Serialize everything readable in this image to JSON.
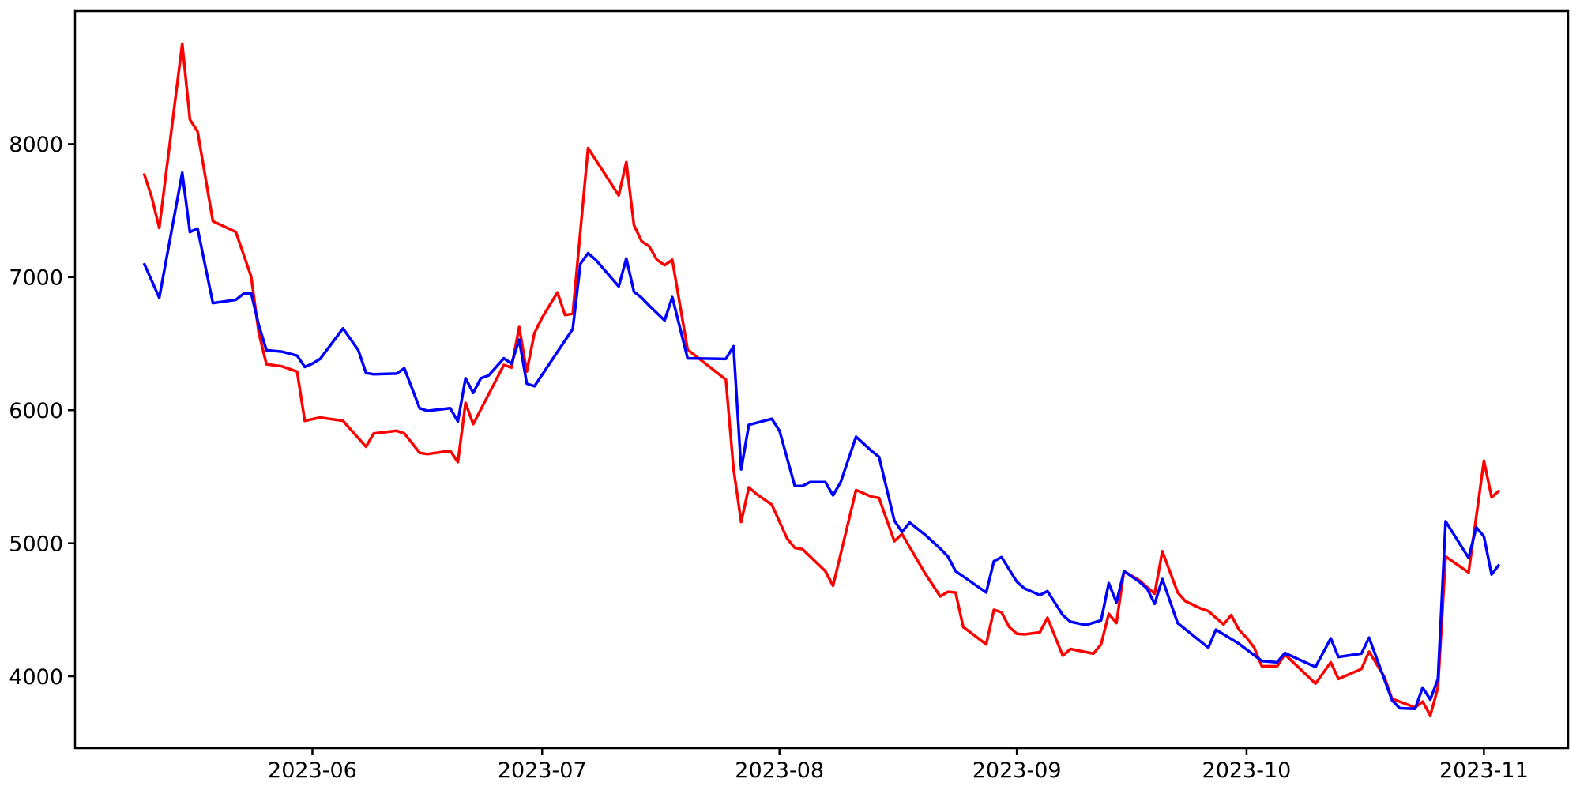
{
  "style": {
    "background": "#ffffff",
    "axis_color": "#000000",
    "tick_label_color": "#000000",
    "red_series_color": "#ff0000",
    "blue_series_color": "#0000ff"
  },
  "chart_data": {
    "type": "line",
    "title": "",
    "xlabel": "",
    "ylabel": "",
    "grid": false,
    "legend": null,
    "x_axis": {
      "range": [
        "2023-05-01",
        "2023-11-12"
      ],
      "ticks": [
        {
          "value": "2023-06-01",
          "label": "2023-06"
        },
        {
          "value": "2023-07-01",
          "label": "2023-07"
        },
        {
          "value": "2023-08-01",
          "label": "2023-08"
        },
        {
          "value": "2023-09-01",
          "label": "2023-09"
        },
        {
          "value": "2023-10-01",
          "label": "2023-10"
        },
        {
          "value": "2023-11-01",
          "label": "2023-11"
        }
      ]
    },
    "y_axis": {
      "range": [
        3460,
        9000
      ],
      "ticks": [
        {
          "value": 4000,
          "label": "4000"
        },
        {
          "value": 5000,
          "label": "5000"
        },
        {
          "value": 6000,
          "label": "6000"
        },
        {
          "value": 7000,
          "label": "7000"
        },
        {
          "value": 8000,
          "label": "8000"
        }
      ]
    },
    "series": [
      {
        "name": "red-line",
        "color": "#ff0000",
        "points": [
          [
            "2023-05-10",
            7780
          ],
          [
            "2023-05-11",
            7605
          ],
          [
            "2023-05-12",
            7370
          ],
          [
            "2023-05-15",
            8755
          ],
          [
            "2023-05-16",
            8185
          ],
          [
            "2023-05-17",
            8095
          ],
          [
            "2023-05-19",
            7420
          ],
          [
            "2023-05-22",
            7340
          ],
          [
            "2023-05-24",
            7005
          ],
          [
            "2023-05-25",
            6580
          ],
          [
            "2023-05-26",
            6345
          ],
          [
            "2023-05-28",
            6330
          ],
          [
            "2023-05-30",
            6290
          ],
          [
            "2023-05-31",
            5920
          ],
          [
            "2023-06-02",
            5945
          ],
          [
            "2023-06-05",
            5920
          ],
          [
            "2023-06-06",
            5855
          ],
          [
            "2023-06-08",
            5725
          ],
          [
            "2023-06-09",
            5825
          ],
          [
            "2023-06-12",
            5845
          ],
          [
            "2023-06-13",
            5825
          ],
          [
            "2023-06-15",
            5680
          ],
          [
            "2023-06-16",
            5670
          ],
          [
            "2023-06-19",
            5695
          ],
          [
            "2023-06-20",
            5610
          ],
          [
            "2023-06-21",
            6055
          ],
          [
            "2023-06-22",
            5895
          ],
          [
            "2023-06-26",
            6340
          ],
          [
            "2023-06-27",
            6320
          ],
          [
            "2023-06-28",
            6625
          ],
          [
            "2023-06-29",
            6290
          ],
          [
            "2023-06-30",
            6580
          ],
          [
            "2023-07-01",
            6695
          ],
          [
            "2023-07-03",
            6885
          ],
          [
            "2023-07-04",
            6715
          ],
          [
            "2023-07-05",
            6725
          ],
          [
            "2023-07-07",
            7970
          ],
          [
            "2023-07-11",
            7615
          ],
          [
            "2023-07-12",
            7865
          ],
          [
            "2023-07-13",
            7390
          ],
          [
            "2023-07-14",
            7270
          ],
          [
            "2023-07-15",
            7230
          ],
          [
            "2023-07-16",
            7130
          ],
          [
            "2023-07-17",
            7090
          ],
          [
            "2023-07-18",
            7130
          ],
          [
            "2023-07-20",
            6455
          ],
          [
            "2023-07-25",
            6230
          ],
          [
            "2023-07-26",
            5560
          ],
          [
            "2023-07-27",
            5160
          ],
          [
            "2023-07-28",
            5420
          ],
          [
            "2023-07-29",
            5370
          ],
          [
            "2023-07-31",
            5290
          ],
          [
            "2023-08-02",
            5035
          ],
          [
            "2023-08-03",
            4965
          ],
          [
            "2023-08-04",
            4955
          ],
          [
            "2023-08-05",
            4900
          ],
          [
            "2023-08-07",
            4790
          ],
          [
            "2023-08-08",
            4680
          ],
          [
            "2023-08-11",
            5400
          ],
          [
            "2023-08-13",
            5350
          ],
          [
            "2023-08-14",
            5340
          ],
          [
            "2023-08-16",
            5015
          ],
          [
            "2023-08-17",
            5070
          ],
          [
            "2023-08-20",
            4775
          ],
          [
            "2023-08-22",
            4600
          ],
          [
            "2023-08-23",
            4635
          ],
          [
            "2023-08-24",
            4630
          ],
          [
            "2023-08-25",
            4370
          ],
          [
            "2023-08-28",
            4240
          ],
          [
            "2023-08-29",
            4500
          ],
          [
            "2023-08-30",
            4480
          ],
          [
            "2023-08-31",
            4370
          ],
          [
            "2023-09-01",
            4320
          ],
          [
            "2023-09-02",
            4315
          ],
          [
            "2023-09-04",
            4330
          ],
          [
            "2023-09-05",
            4440
          ],
          [
            "2023-09-07",
            4155
          ],
          [
            "2023-09-08",
            4205
          ],
          [
            "2023-09-11",
            4170
          ],
          [
            "2023-09-12",
            4240
          ],
          [
            "2023-09-13",
            4470
          ],
          [
            "2023-09-14",
            4400
          ],
          [
            "2023-09-15",
            4790
          ],
          [
            "2023-09-17",
            4720
          ],
          [
            "2023-09-18",
            4670
          ],
          [
            "2023-09-19",
            4620
          ],
          [
            "2023-09-20",
            4940
          ],
          [
            "2023-09-22",
            4630
          ],
          [
            "2023-09-23",
            4565
          ],
          [
            "2023-09-25",
            4510
          ],
          [
            "2023-09-26",
            4490
          ],
          [
            "2023-09-28",
            4390
          ],
          [
            "2023-09-29",
            4460
          ],
          [
            "2023-09-30",
            4350
          ],
          [
            "2023-10-01",
            4290
          ],
          [
            "2023-10-02",
            4215
          ],
          [
            "2023-10-03",
            4075
          ],
          [
            "2023-10-05",
            4075
          ],
          [
            "2023-10-06",
            4165
          ],
          [
            "2023-10-10",
            3945
          ],
          [
            "2023-10-12",
            4105
          ],
          [
            "2023-10-13",
            3980
          ],
          [
            "2023-10-16",
            4055
          ],
          [
            "2023-10-17",
            4185
          ],
          [
            "2023-10-19",
            3995
          ],
          [
            "2023-10-20",
            3830
          ],
          [
            "2023-10-21",
            3810
          ],
          [
            "2023-10-23",
            3765
          ],
          [
            "2023-10-24",
            3810
          ],
          [
            "2023-10-25",
            3705
          ],
          [
            "2023-10-26",
            3915
          ],
          [
            "2023-10-27",
            4900
          ],
          [
            "2023-10-30",
            4780
          ],
          [
            "2023-11-01",
            5620
          ],
          [
            "2023-11-02",
            5345
          ],
          [
            "2023-11-03",
            5395
          ]
        ]
      },
      {
        "name": "blue-line",
        "color": "#0000ff",
        "points": [
          [
            "2023-05-10",
            7105
          ],
          [
            "2023-05-12",
            6845
          ],
          [
            "2023-05-15",
            7785
          ],
          [
            "2023-05-16",
            7340
          ],
          [
            "2023-05-17",
            7365
          ],
          [
            "2023-05-19",
            6805
          ],
          [
            "2023-05-22",
            6830
          ],
          [
            "2023-05-23",
            6875
          ],
          [
            "2023-05-24",
            6880
          ],
          [
            "2023-05-25",
            6640
          ],
          [
            "2023-05-26",
            6450
          ],
          [
            "2023-05-28",
            6440
          ],
          [
            "2023-05-30",
            6410
          ],
          [
            "2023-05-31",
            6325
          ],
          [
            "2023-06-01",
            6350
          ],
          [
            "2023-06-02",
            6385
          ],
          [
            "2023-06-05",
            6615
          ],
          [
            "2023-06-07",
            6450
          ],
          [
            "2023-06-08",
            6280
          ],
          [
            "2023-06-09",
            6270
          ],
          [
            "2023-06-12",
            6275
          ],
          [
            "2023-06-13",
            6315
          ],
          [
            "2023-06-15",
            6015
          ],
          [
            "2023-06-16",
            5995
          ],
          [
            "2023-06-19",
            6015
          ],
          [
            "2023-06-20",
            5915
          ],
          [
            "2023-06-21",
            6240
          ],
          [
            "2023-06-22",
            6130
          ],
          [
            "2023-06-23",
            6240
          ],
          [
            "2023-06-24",
            6260
          ],
          [
            "2023-06-26",
            6390
          ],
          [
            "2023-06-27",
            6350
          ],
          [
            "2023-06-28",
            6530
          ],
          [
            "2023-06-29",
            6200
          ],
          [
            "2023-06-30",
            6180
          ],
          [
            "2023-07-05",
            6610
          ],
          [
            "2023-07-06",
            7100
          ],
          [
            "2023-07-07",
            7180
          ],
          [
            "2023-07-08",
            7130
          ],
          [
            "2023-07-11",
            6930
          ],
          [
            "2023-07-12",
            7140
          ],
          [
            "2023-07-13",
            6890
          ],
          [
            "2023-07-14",
            6845
          ],
          [
            "2023-07-15",
            6785
          ],
          [
            "2023-07-17",
            6675
          ],
          [
            "2023-07-18",
            6850
          ],
          [
            "2023-07-20",
            6390
          ],
          [
            "2023-07-25",
            6385
          ],
          [
            "2023-07-26",
            6480
          ],
          [
            "2023-07-27",
            5555
          ],
          [
            "2023-07-28",
            5890
          ],
          [
            "2023-07-31",
            5935
          ],
          [
            "2023-08-01",
            5845
          ],
          [
            "2023-08-03",
            5430
          ],
          [
            "2023-08-04",
            5430
          ],
          [
            "2023-08-05",
            5460
          ],
          [
            "2023-08-07",
            5460
          ],
          [
            "2023-08-08",
            5360
          ],
          [
            "2023-08-09",
            5460
          ],
          [
            "2023-08-11",
            5800
          ],
          [
            "2023-08-13",
            5695
          ],
          [
            "2023-08-14",
            5650
          ],
          [
            "2023-08-16",
            5170
          ],
          [
            "2023-08-17",
            5085
          ],
          [
            "2023-08-18",
            5155
          ],
          [
            "2023-08-20",
            5065
          ],
          [
            "2023-08-22",
            4960
          ],
          [
            "2023-08-23",
            4900
          ],
          [
            "2023-08-24",
            4790
          ],
          [
            "2023-08-28",
            4630
          ],
          [
            "2023-08-29",
            4865
          ],
          [
            "2023-08-30",
            4895
          ],
          [
            "2023-09-01",
            4710
          ],
          [
            "2023-09-02",
            4660
          ],
          [
            "2023-09-04",
            4610
          ],
          [
            "2023-09-05",
            4640
          ],
          [
            "2023-09-07",
            4460
          ],
          [
            "2023-09-08",
            4410
          ],
          [
            "2023-09-10",
            4385
          ],
          [
            "2023-09-12",
            4420
          ],
          [
            "2023-09-13",
            4700
          ],
          [
            "2023-09-14",
            4555
          ],
          [
            "2023-09-15",
            4790
          ],
          [
            "2023-09-17",
            4710
          ],
          [
            "2023-09-18",
            4660
          ],
          [
            "2023-09-19",
            4545
          ],
          [
            "2023-09-20",
            4730
          ],
          [
            "2023-09-22",
            4400
          ],
          [
            "2023-09-26",
            4215
          ],
          [
            "2023-09-27",
            4350
          ],
          [
            "2023-09-30",
            4245
          ],
          [
            "2023-10-03",
            4115
          ],
          [
            "2023-10-05",
            4105
          ],
          [
            "2023-10-06",
            4175
          ],
          [
            "2023-10-10",
            4070
          ],
          [
            "2023-10-12",
            4285
          ],
          [
            "2023-10-13",
            4145
          ],
          [
            "2023-10-16",
            4170
          ],
          [
            "2023-10-17",
            4290
          ],
          [
            "2023-10-20",
            3820
          ],
          [
            "2023-10-21",
            3760
          ],
          [
            "2023-10-23",
            3755
          ],
          [
            "2023-10-24",
            3915
          ],
          [
            "2023-10-25",
            3825
          ],
          [
            "2023-10-26",
            3980
          ],
          [
            "2023-10-27",
            5165
          ],
          [
            "2023-10-30",
            4890
          ],
          [
            "2023-10-31",
            5120
          ],
          [
            "2023-11-01",
            5050
          ],
          [
            "2023-11-02",
            4765
          ],
          [
            "2023-11-03",
            4840
          ]
        ]
      }
    ]
  }
}
